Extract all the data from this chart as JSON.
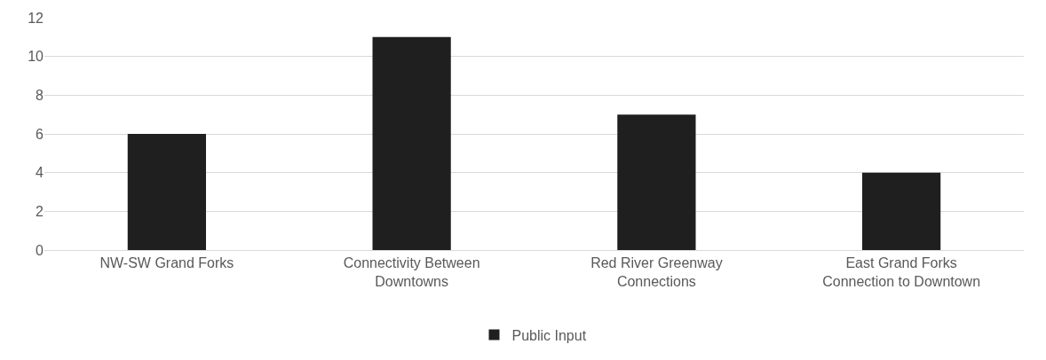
{
  "chart_data": {
    "type": "bar",
    "categories": [
      "NW-SW Grand Forks",
      "Connectivity Between Downtowns",
      "Red River Greenway Connections",
      "East Grand Forks Connection to Downtown"
    ],
    "series": [
      {
        "name": "Public Input",
        "color": "#1f1f1f",
        "values": [
          6,
          11,
          7,
          4
        ]
      }
    ],
    "ylim": [
      0,
      12
    ],
    "yticks": [
      0,
      2,
      4,
      6,
      8,
      10,
      12
    ],
    "grid": "y",
    "legend": "bottom"
  }
}
